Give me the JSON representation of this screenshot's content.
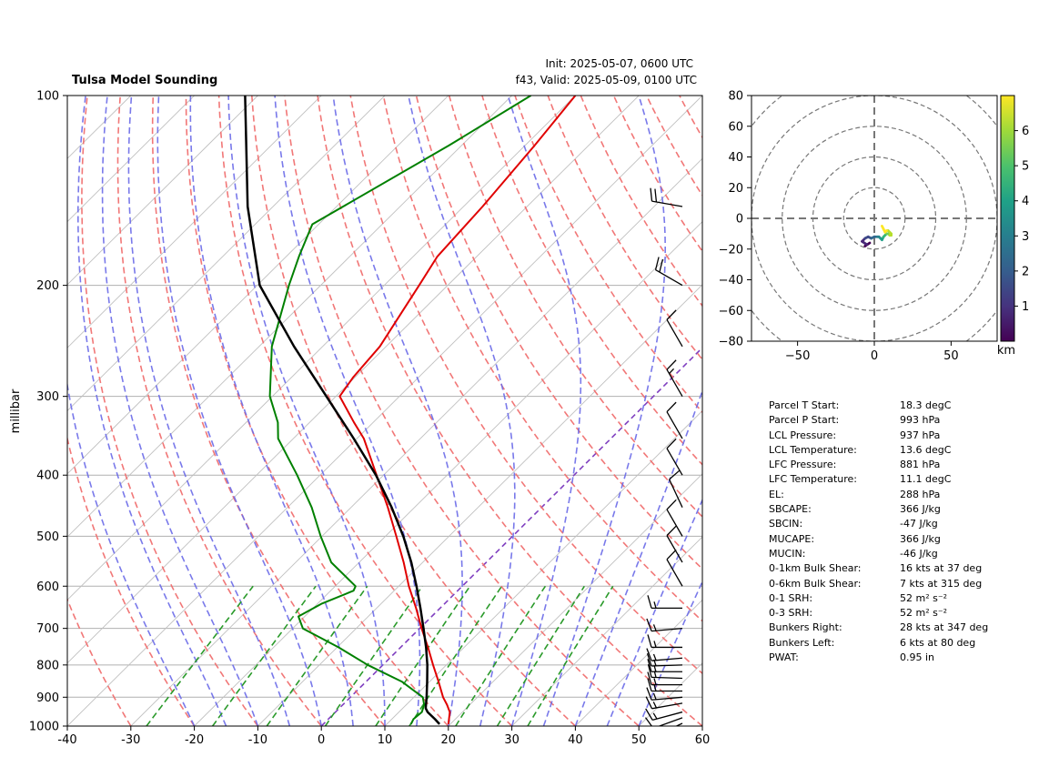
{
  "header": {
    "title": "Tulsa Model Sounding",
    "init": "Init: 2025-05-07, 0600 UTC",
    "valid": "f43, Valid: 2025-05-09, 0100 UTC"
  },
  "chart_data": [
    {
      "type": "line",
      "subtype": "skew-t log-p",
      "title": "Tulsa Model Sounding",
      "ylabel": "millibar",
      "xlabel": "",
      "xlim": [
        -40,
        60
      ],
      "ylim": [
        1000,
        100
      ],
      "y_scale": "log",
      "grid": true,
      "xticks": [
        -40,
        -30,
        -20,
        -10,
        0,
        10,
        20,
        30,
        40,
        50,
        60
      ],
      "yticks": [
        1000,
        900,
        800,
        700,
        600,
        500,
        400,
        300,
        200,
        100
      ],
      "colors": {
        "temperature": "#e00000",
        "dewpoint": "#008000",
        "parcel": "#000000",
        "dry_adiabats": "#f07070",
        "moist_adiabats": "#6a6ae8",
        "mixing_ratio": "#2a9a2a",
        "zero_isotherm": "#8040c0",
        "isobars": "#b0b0b0"
      },
      "series": [
        {
          "key": "temperature",
          "p": [
            993,
            975,
            950,
            925,
            900,
            850,
            800,
            750,
            700,
            650,
            600,
            550,
            500,
            450,
            400,
            350,
            330,
            300,
            280,
            250,
            220,
            200,
            180,
            150,
            120,
            100
          ],
          "values": [
            19.7,
            19.0,
            18.0,
            16.4,
            14.6,
            11.4,
            7.9,
            4.3,
            0.3,
            -3.8,
            -8.4,
            -13.0,
            -18.3,
            -24.2,
            -31.1,
            -38.9,
            -43.0,
            -49.4,
            -50.3,
            -51.0,
            -53.0,
            -54.5,
            -56.2,
            -57.0,
            -58.5,
            -60.0
          ]
        },
        {
          "key": "dewpoint",
          "p": [
            993,
            975,
            950,
            925,
            900,
            850,
            800,
            750,
            700,
            670,
            640,
            610,
            600,
            550,
            500,
            450,
            400,
            350,
            330,
            300,
            250,
            200,
            180,
            160,
            120,
            100
          ],
          "values": [
            13.8,
            13.4,
            13.6,
            12.8,
            11.4,
            5.6,
            -2.4,
            -9.8,
            -18.4,
            -21.0,
            -19.4,
            -16.4,
            -16.8,
            -24.4,
            -30.2,
            -36.2,
            -43.6,
            -52.4,
            -55.0,
            -60.4,
            -68.0,
            -75.0,
            -78.0,
            -81.0,
            -72.0,
            -67.0
          ]
        },
        {
          "key": "parcel",
          "p": [
            993,
            975,
            950,
            937,
            900,
            850,
            800,
            750,
            700,
            650,
            600,
            550,
            500,
            450,
            400,
            350,
            300,
            250,
            200,
            150,
            100
          ],
          "values": [
            18.3,
            16.8,
            14.5,
            13.6,
            12.0,
            9.6,
            7.0,
            4.0,
            0.6,
            -3.1,
            -7.2,
            -11.8,
            -17.2,
            -23.6,
            -31.2,
            -40.5,
            -51.5,
            -64.5,
            -79.6,
            -94.0,
            -112.0
          ]
        }
      ],
      "wind_barbs": {
        "p": [
          990,
          970,
          950,
          920,
          900,
          880,
          860,
          840,
          820,
          800,
          780,
          750,
          700,
          650,
          600,
          550,
          500,
          450,
          400,
          350,
          300,
          250,
          200,
          150
        ],
        "direction_deg": [
          245,
          250,
          255,
          260,
          265,
          270,
          270,
          272,
          270,
          268,
          265,
          270,
          265,
          270,
          330,
          330,
          330,
          335,
          330,
          330,
          330,
          330,
          300,
          280
        ],
        "speed_kt": [
          10,
          12,
          15,
          15,
          15,
          15,
          15,
          15,
          15,
          15,
          15,
          15,
          15,
          15,
          10,
          10,
          10,
          10,
          10,
          10,
          15,
          10,
          20,
          20
        ]
      }
    },
    {
      "type": "line",
      "subtype": "hodograph",
      "xlim": [
        -80,
        80
      ],
      "ylim": [
        -80,
        80
      ],
      "xticks": [
        -50,
        0,
        50
      ],
      "yticks": [
        -80,
        -60,
        -40,
        -20,
        0,
        20,
        40,
        60,
        80
      ],
      "rings": [
        20,
        40,
        60,
        80,
        100
      ],
      "colorbar": {
        "label": "km",
        "ticks": [
          1,
          2,
          3,
          4,
          5,
          6
        ],
        "range": [
          0,
          7
        ],
        "colormap": "viridis"
      },
      "u": [
        -3,
        -6,
        -5,
        -8,
        -6,
        -4,
        -2,
        0,
        2,
        3,
        4,
        5,
        6,
        7,
        8,
        9,
        10,
        11,
        11,
        10,
        9,
        8,
        7,
        6,
        5
      ],
      "v": [
        -16,
        -18,
        -17,
        -15,
        -13,
        -12,
        -13,
        -12,
        -12,
        -12,
        -13,
        -14,
        -12,
        -11,
        -10,
        -10,
        -11,
        -11,
        -10,
        -9,
        -8,
        -8,
        -9,
        -7,
        -5
      ],
      "height_km": [
        0.1,
        0.3,
        0.6,
        0.9,
        1.2,
        1.6,
        2.0,
        2.4,
        2.8,
        3.2,
        3.6,
        4.0,
        4.4,
        4.8,
        5.2,
        5.6,
        6.0,
        6.2,
        6.4,
        6.5,
        6.6,
        6.7,
        6.8,
        6.9,
        7.0
      ]
    }
  ],
  "parameters": [
    {
      "label": "Parcel T Start:",
      "value": "18.3 degC"
    },
    {
      "label": "Parcel P Start:",
      "value": "993 hPa"
    },
    {
      "label": "LCL Pressure:",
      "value": "937 hPa"
    },
    {
      "label": "LCL Temperature:",
      "value": "13.6 degC"
    },
    {
      "label": "LFC Pressure:",
      "value": "881 hPa"
    },
    {
      "label": "LFC Temperature:",
      "value": "11.1 degC"
    },
    {
      "label": "EL:",
      "value": "288 hPa"
    },
    {
      "label": "SBCAPE:",
      "value": "366 J/kg"
    },
    {
      "label": "SBCIN:",
      "value": "-47 J/kg"
    },
    {
      "label": "MUCAPE:",
      "value": "366 J/kg"
    },
    {
      "label": "MUCIN:",
      "value": "-46 J/kg"
    },
    {
      "label": "0-1km Bulk Shear:",
      "value": "16 kts at 37 deg"
    },
    {
      "label": "0-6km Bulk Shear:",
      "value": "7 kts at 315 deg"
    },
    {
      "label": "0-1 SRH:",
      "value": "52 m² s⁻²"
    },
    {
      "label": "0-3 SRH:",
      "value": "52 m² s⁻²"
    },
    {
      "label": "Bunkers Right:",
      "value": "28 kts at 347 deg"
    },
    {
      "label": "Bunkers Left:",
      "value": "6 kts at 80 deg"
    },
    {
      "label": "PWAT:",
      "value": "0.95 in"
    }
  ]
}
